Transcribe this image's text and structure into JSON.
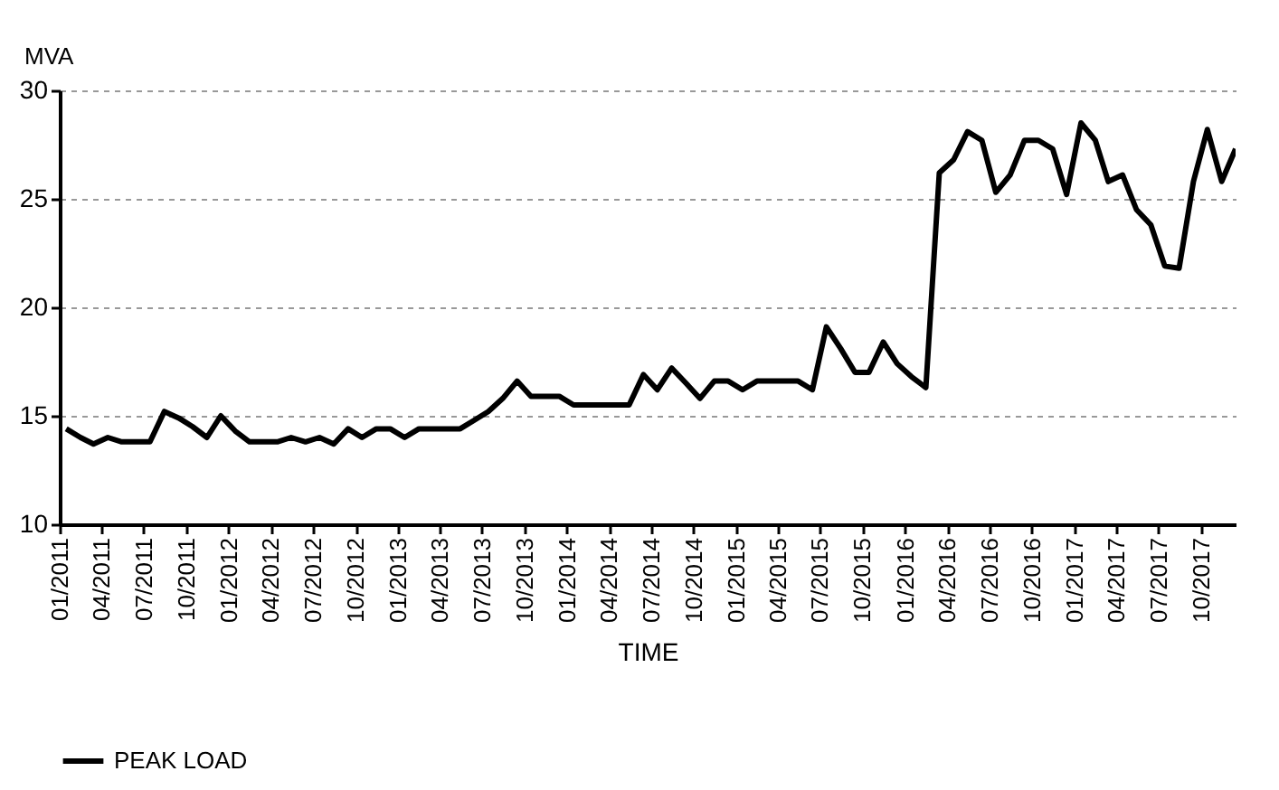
{
  "chart_data": {
    "type": "line",
    "xlabel": "TIME",
    "ylabel": "MVA",
    "x": [
      "2011-01-15",
      "2011-02-15",
      "2011-03-15",
      "2011-04-15",
      "2011-05-15",
      "2011-06-15",
      "2011-07-15",
      "2011-08-15",
      "2011-09-15",
      "2011-10-15",
      "2011-11-15",
      "2011-12-15",
      "2012-01-15",
      "2012-02-15",
      "2012-03-15",
      "2012-04-15",
      "2012-05-15",
      "2012-06-15",
      "2012-07-15",
      "2012-08-15",
      "2012-09-15",
      "2012-10-15",
      "2012-11-15",
      "2012-12-15",
      "2013-01-15",
      "2013-02-15",
      "2013-03-15",
      "2013-04-15",
      "2013-05-15",
      "2013-06-15",
      "2013-07-15",
      "2013-08-15",
      "2013-09-15",
      "2013-10-15",
      "2013-11-15",
      "2013-12-15",
      "2014-01-15",
      "2014-02-15",
      "2014-03-15",
      "2014-04-15",
      "2014-05-15",
      "2014-06-15",
      "2014-07-15",
      "2014-08-15",
      "2014-09-15",
      "2014-10-15",
      "2014-11-15",
      "2014-12-15",
      "2015-01-15",
      "2015-02-15",
      "2015-03-15",
      "2015-04-15",
      "2015-05-15",
      "2015-06-15",
      "2015-07-15",
      "2015-08-15",
      "2015-09-15",
      "2015-10-15",
      "2015-11-15",
      "2015-12-15",
      "2016-01-15",
      "2016-02-15",
      "2016-03-15",
      "2016-04-15",
      "2016-05-15",
      "2016-06-15",
      "2016-07-15",
      "2016-08-15",
      "2016-09-15",
      "2016-10-15",
      "2016-11-15",
      "2016-12-15",
      "2017-01-15",
      "2017-02-15",
      "2017-03-15",
      "2017-04-15",
      "2017-05-15",
      "2017-06-15",
      "2017-07-15",
      "2017-08-15",
      "2017-09-15",
      "2017-10-15",
      "2017-11-15",
      "2017-12-15"
    ],
    "series": [
      {
        "name": "PEAK LOAD",
        "color": "#000000",
        "values": [
          14.4,
          14.0,
          13.7,
          14.0,
          13.8,
          13.8,
          13.8,
          15.2,
          14.9,
          14.5,
          14.0,
          15.0,
          14.3,
          13.8,
          13.8,
          13.8,
          14.0,
          13.8,
          14.0,
          13.7,
          14.4,
          14.0,
          14.4,
          14.4,
          14.0,
          14.4,
          14.4,
          14.4,
          14.4,
          14.8,
          15.2,
          15.8,
          16.6,
          15.9,
          15.9,
          15.9,
          15.5,
          15.5,
          15.5,
          15.5,
          15.5,
          16.9,
          16.2,
          17.2,
          16.5,
          15.8,
          16.6,
          16.6,
          16.2,
          16.6,
          16.6,
          16.6,
          16.6,
          16.2,
          19.1,
          18.1,
          17.0,
          17.0,
          18.4,
          17.4,
          16.8,
          16.3,
          26.2,
          26.8,
          28.1,
          27.7,
          25.3,
          26.1,
          27.7,
          27.7,
          27.3,
          25.2,
          28.5,
          27.7,
          25.8,
          26.1,
          24.5,
          23.8,
          21.9,
          21.8,
          25.8,
          28.2,
          25.8,
          27.3
        ]
      }
    ],
    "xlim": [
      "2011-01-01",
      "2017-12-15"
    ],
    "xticks": [
      {
        "value": "2011-01",
        "label": "01/2011"
      },
      {
        "value": "2011-04",
        "label": "04/2011"
      },
      {
        "value": "2011-07",
        "label": "07/2011"
      },
      {
        "value": "2011-10",
        "label": "10/2011"
      },
      {
        "value": "2012-01",
        "label": "01/2012"
      },
      {
        "value": "2012-04",
        "label": "04/2012"
      },
      {
        "value": "2012-07",
        "label": "07/2012"
      },
      {
        "value": "2012-10",
        "label": "10/2012"
      },
      {
        "value": "2013-01",
        "label": "01/2013"
      },
      {
        "value": "2013-04",
        "label": "04/2013"
      },
      {
        "value": "2013-07",
        "label": "07/2013"
      },
      {
        "value": "2013-10",
        "label": "10/2013"
      },
      {
        "value": "2014-01",
        "label": "01/2014"
      },
      {
        "value": "2014-04",
        "label": "04/2014"
      },
      {
        "value": "2014-07",
        "label": "07/2014"
      },
      {
        "value": "2014-10",
        "label": "10/2014"
      },
      {
        "value": "2015-01",
        "label": "01/2015"
      },
      {
        "value": "2015-04",
        "label": "04/2015"
      },
      {
        "value": "2015-07",
        "label": "07/2015"
      },
      {
        "value": "2015-10",
        "label": "10/2015"
      },
      {
        "value": "2016-01",
        "label": "01/2016"
      },
      {
        "value": "2016-04",
        "label": "04/2016"
      },
      {
        "value": "2016-07",
        "label": "07/2016"
      },
      {
        "value": "2016-10",
        "label": "10/2016"
      },
      {
        "value": "2017-01",
        "label": "01/2017"
      },
      {
        "value": "2017-04",
        "label": "04/2017"
      },
      {
        "value": "2017-07",
        "label": "07/2017"
      },
      {
        "value": "2017-10",
        "label": "10/2017"
      }
    ],
    "ylim": [
      10,
      30
    ],
    "yticks": [
      10,
      15,
      20,
      25,
      30
    ],
    "grid": "y",
    "legend": "bottom",
    "marker": "none",
    "line_style": "solid"
  }
}
